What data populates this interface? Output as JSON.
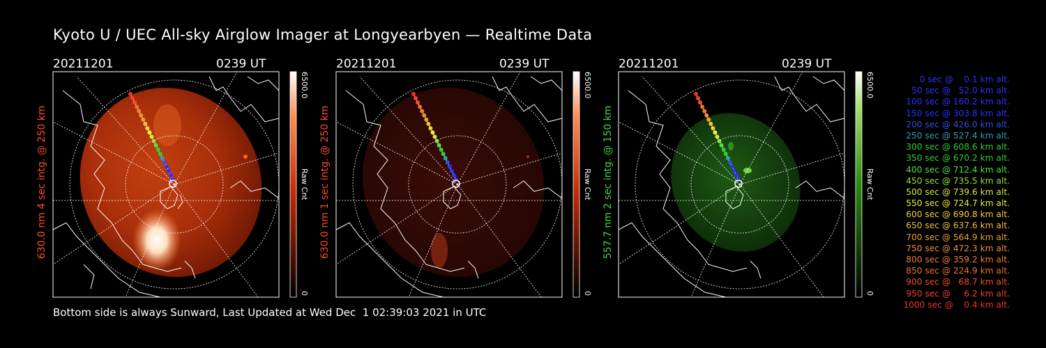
{
  "header": {
    "title": "Kyoto U / UEC All-sky Airglow Imager at Longyearbyen — Realtime Data"
  },
  "panels": [
    {
      "date": "20211201",
      "time": "0239 UT",
      "label": "630.0 nm 4 sec intg. @ 250 km",
      "colorbar": {
        "max": "6500.0",
        "min": "0",
        "unit": "Raw Cnt"
      },
      "color": "#ff5a2a"
    },
    {
      "date": "20211201",
      "time": "0239 UT",
      "label": "630.0 nm 1 sec intg. @ 250 km",
      "colorbar": {
        "max": "6500.0",
        "min": "0",
        "unit": "Raw Cnt"
      },
      "color": "#ff5a2a"
    },
    {
      "date": "20211201",
      "time": "0239 UT",
      "label": "557.7 nm 2 sec intg. @ 150 km",
      "colorbar": {
        "max": "6500.0",
        "min": "0",
        "unit": "Raw Cnt"
      },
      "color": "#3fd93f"
    }
  ],
  "footer": {
    "text": "Bottom side is always Sunward, Last Updated at Wed Dec  1 02:39:03 2021 in UTC"
  },
  "legend": [
    {
      "text": "0 sec @    0.1 km alt.",
      "color": "#3030ff"
    },
    {
      "text": "50 sec @   52.0 km alt.",
      "color": "#3030ff"
    },
    {
      "text": "100 sec @ 160.2 km alt.",
      "color": "#3030ff"
    },
    {
      "text": "150 sec @ 303.8 km alt.",
      "color": "#3030ff"
    },
    {
      "text": "200 sec @ 426.0 km alt.",
      "color": "#3050e0"
    },
    {
      "text": "250 sec @ 527.4 km alt.",
      "color": "#2fa0b0"
    },
    {
      "text": "300 sec @ 608.6 km alt.",
      "color": "#30d030"
    },
    {
      "text": "350 sec @ 670.2 km alt.",
      "color": "#30d030"
    },
    {
      "text": "400 sec @ 712.4 km alt.",
      "color": "#50e040"
    },
    {
      "text": "450 sec @ 735.5 km alt.",
      "color": "#90e040"
    },
    {
      "text": "500 sec @ 739.6 km alt.",
      "color": "#d8e840"
    },
    {
      "text": "550 sec @ 724.7 km alt.",
      "color": "#f0f040"
    },
    {
      "text": "600 sec @ 690.8 km alt.",
      "color": "#f0d040"
    },
    {
      "text": "650 sec @ 637.6 km alt.",
      "color": "#f0c040"
    },
    {
      "text": "700 sec @ 564.9 km alt.",
      "color": "#f0a030"
    },
    {
      "text": "750 sec @ 472.3 km alt.",
      "color": "#f09030"
    },
    {
      "text": "800 sec @ 359.2 km alt.",
      "color": "#f08030"
    },
    {
      "text": "850 sec @ 224.9 km alt.",
      "color": "#f07030"
    },
    {
      "text": "900 sec @   68.7 km alt.",
      "color": "#f05030"
    },
    {
      "text": "950 sec @     6.2 km alt.",
      "color": "#f04030"
    },
    {
      "text": "1000 sec @    0.4 km alt.",
      "color": "#f03030"
    }
  ]
}
